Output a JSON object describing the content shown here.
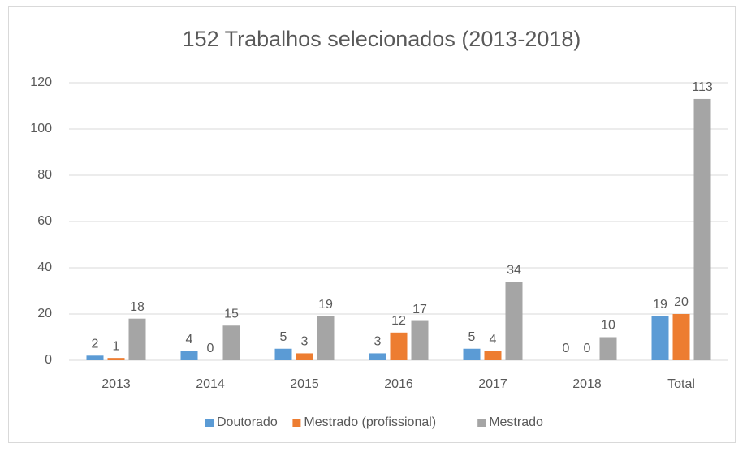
{
  "chart_data": {
    "type": "bar",
    "title": "152 Trabalhos selecionados (2013-2018)",
    "categories": [
      "2013",
      "2014",
      "2015",
      "2016",
      "2017",
      "2018",
      "Total"
    ],
    "series": [
      {
        "name": "Doutorado",
        "color": "#5b9bd5",
        "values": [
          2,
          4,
          5,
          3,
          5,
          0,
          19
        ]
      },
      {
        "name": "Mestrado (profissional)",
        "color": "#ed7d31",
        "values": [
          1,
          0,
          3,
          12,
          4,
          0,
          20
        ]
      },
      {
        "name": "Mestrado",
        "color": "#a5a5a5",
        "values": [
          18,
          15,
          19,
          17,
          34,
          10,
          113
        ]
      }
    ],
    "ylim": [
      0,
      120
    ],
    "yticks": [
      0,
      20,
      40,
      60,
      80,
      100,
      120
    ],
    "grid": true,
    "legend": "bottom"
  }
}
